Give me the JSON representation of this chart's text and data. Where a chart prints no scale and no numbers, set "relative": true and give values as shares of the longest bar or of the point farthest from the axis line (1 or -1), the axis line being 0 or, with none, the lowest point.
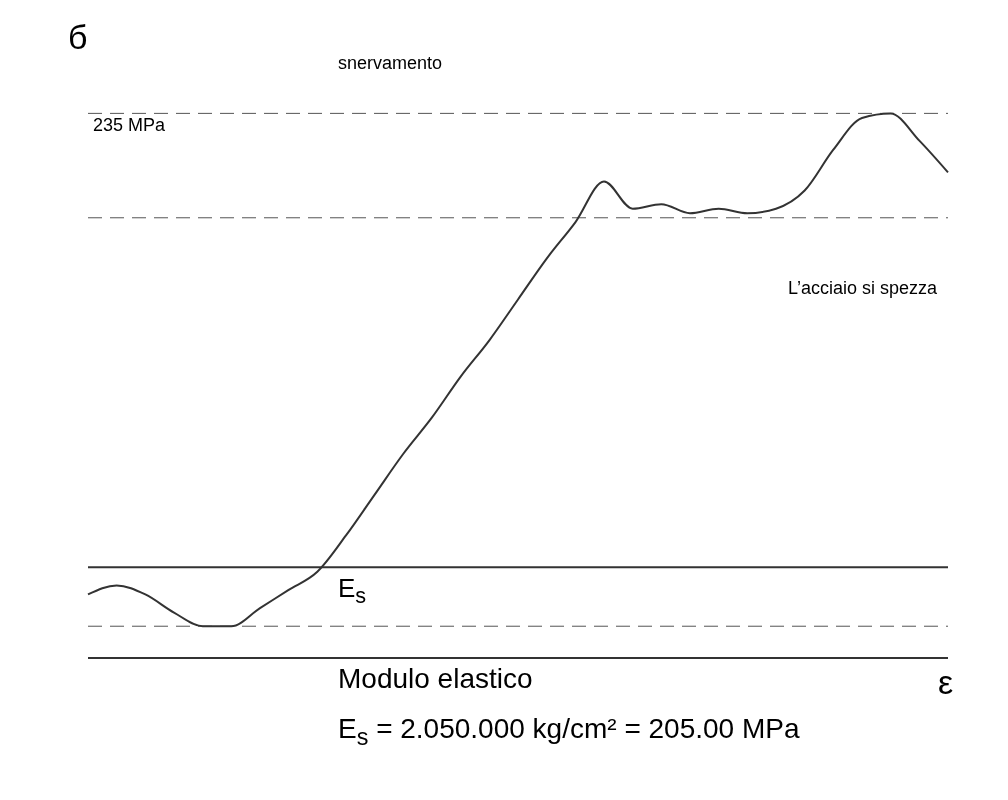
{
  "chart_data": {
    "type": "line",
    "relative": true,
    "ylabel": "б",
    "xlabel": "ε",
    "categories": [
      null,
      null,
      null,
      null,
      null,
      null,
      null,
      null,
      null,
      null,
      null,
      null,
      null,
      null,
      null,
      null,
      null,
      null,
      null,
      null,
      null,
      null,
      null,
      null,
      null,
      null,
      null,
      null,
      null,
      null,
      null
    ],
    "series": [
      {
        "color": "#333333",
        "values": [
          -0.06,
          -0.04,
          -0.06,
          -0.1,
          -0.13,
          -0.13,
          -0.09,
          -0.05,
          -0.01,
          0.07,
          0.16,
          0.25,
          0.33,
          0.42,
          0.5,
          0.59,
          0.68,
          0.76,
          0.85,
          0.79,
          0.8,
          0.78,
          0.79,
          0.78,
          0.79,
          0.83,
          0.92,
          0.99,
          1,
          0.94,
          0.87
        ]
      }
    ],
    "ref_lines": [
      {
        "axis": "y",
        "value": 1,
        "label": "235 MPa",
        "line_style": "dashed"
      },
      {
        "axis": "y",
        "value": 0.77,
        "line_style": "dashed"
      },
      {
        "axis": "y",
        "value": -0.13,
        "line_style": "dashed"
      }
    ],
    "annotations": [
      "snervamento",
      "L’acciaio si spezza",
      "E$_{s}$",
      "Modulo elastico",
      "E$_{s}$ = 2.050.000 kg/cm² = 205.00 MPa"
    ],
    "marker": "none",
    "line_style": "solid",
    "grid": false,
    "legend": false
  }
}
